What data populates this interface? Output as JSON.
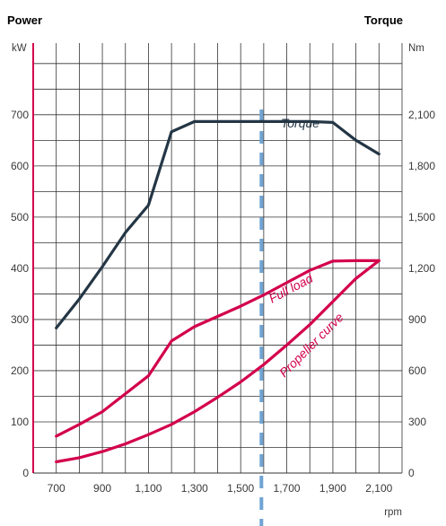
{
  "chart_data": {
    "type": "line",
    "title_left": "Power",
    "title_right": "Torque",
    "y_left_unit": "kW",
    "y_right_unit": "Nm",
    "x_unit": "rpm",
    "xlim": [
      600,
      2200
    ],
    "ylim_left": [
      0,
      840
    ],
    "ylim_right": [
      0,
      2520
    ],
    "grid": true,
    "x_ticks": [
      {
        "value": 700,
        "label": "700"
      },
      {
        "value": 900,
        "label": "900"
      },
      {
        "value": 1100,
        "label": "1,100"
      },
      {
        "value": 1300,
        "label": "1,300"
      },
      {
        "value": 1500,
        "label": "1,500"
      },
      {
        "value": 1700,
        "label": "1,700"
      },
      {
        "value": 1900,
        "label": "1,900"
      },
      {
        "value": 2100,
        "label": "2,100"
      }
    ],
    "y_left_ticks": [
      {
        "value": 0,
        "label": "0"
      },
      {
        "value": 100,
        "label": "100"
      },
      {
        "value": 200,
        "label": "200"
      },
      {
        "value": 300,
        "label": "300"
      },
      {
        "value": 400,
        "label": "400"
      },
      {
        "value": 500,
        "label": "500"
      },
      {
        "value": 600,
        "label": "600"
      },
      {
        "value": 700,
        "label": "700"
      }
    ],
    "y_right_ticks": [
      {
        "value": 0,
        "label": "0"
      },
      {
        "value": 300,
        "label": "300"
      },
      {
        "value": 600,
        "label": "600"
      },
      {
        "value": 900,
        "label": "900"
      },
      {
        "value": 1200,
        "label": "1,200"
      },
      {
        "value": 1500,
        "label": "1,500"
      },
      {
        "value": 1800,
        "label": "1,800"
      },
      {
        "value": 2100,
        "label": "2,100"
      }
    ],
    "series": [
      {
        "name": "Torque",
        "axis": "right",
        "color": "#243645",
        "x": [
          700,
          800,
          900,
          1000,
          1100,
          1200,
          1300,
          1400,
          1500,
          1600,
          1700,
          1800,
          1900,
          2000,
          2100
        ],
        "y": [
          850,
          1020,
          1210,
          1410,
          1570,
          2000,
          2060,
          2060,
          2060,
          2060,
          2060,
          2060,
          2055,
          1950,
          1870
        ]
      },
      {
        "name": "Full load",
        "axis": "left",
        "color": "#d3004c",
        "x": [
          700,
          800,
          900,
          1000,
          1100,
          1200,
          1300,
          1400,
          1500,
          1600,
          1700,
          1800,
          1900,
          2000,
          2100
        ],
        "y": [
          72,
          95,
          120,
          155,
          190,
          258,
          286,
          306,
          326,
          348,
          372,
          396,
          414,
          415,
          415
        ]
      },
      {
        "name": "Propeller curve",
        "axis": "left",
        "color": "#d3004c",
        "x": [
          700,
          800,
          900,
          1000,
          1100,
          1200,
          1300,
          1400,
          1500,
          1600,
          1700,
          1800,
          1900,
          2000,
          2100
        ],
        "y": [
          22,
          30,
          42,
          57,
          75,
          95,
          120,
          148,
          178,
          212,
          250,
          290,
          335,
          380,
          415
        ]
      }
    ],
    "reference_line": {
      "x": 1590,
      "style": "dashed",
      "color": "#6fa4d4"
    }
  },
  "colors": {
    "power": "#d3004c",
    "torque": "#243645",
    "grid": "#333333",
    "reference": "#6fa4d4"
  }
}
